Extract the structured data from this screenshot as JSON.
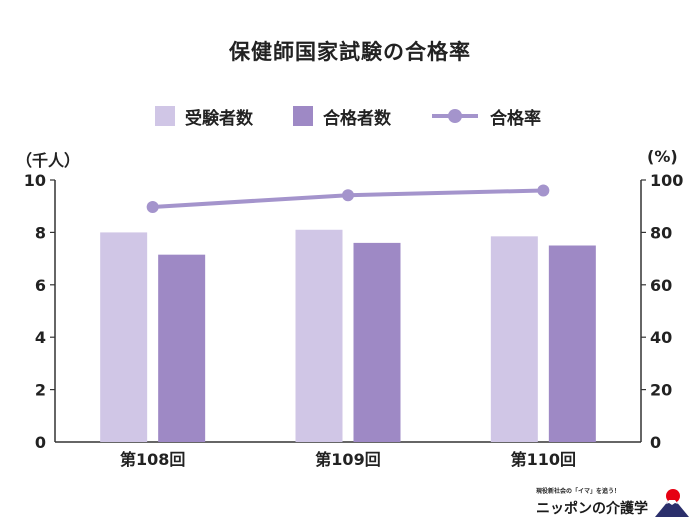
{
  "colors": {
    "applicants": "#d0c6e6",
    "passers": "#9e89c5",
    "rate": "#a494cc",
    "axis": "#333333",
    "text": "#222222"
  },
  "chart_data": {
    "type": "bar",
    "title": "保健師国家試験の合格率",
    "categories": [
      "第108回",
      "第109回",
      "第110回"
    ],
    "series": [
      {
        "name": "受験者数",
        "kind": "bar",
        "axis": "left",
        "values": [
          8.0,
          8.1,
          7.85
        ]
      },
      {
        "name": "合格者数",
        "kind": "bar",
        "axis": "left",
        "values": [
          7.15,
          7.6,
          7.5
        ]
      },
      {
        "name": "合格率",
        "kind": "line",
        "axis": "right",
        "values": [
          89.7,
          94.2,
          96.0
        ]
      }
    ],
    "y_left": {
      "unit": "（千人）",
      "ticks": [
        "0",
        "2",
        "4",
        "6",
        "8",
        "10"
      ],
      "range": [
        0,
        10
      ]
    },
    "y_right": {
      "unit": "(%)",
      "ticks": [
        "0",
        "20",
        "40",
        "60",
        "80",
        "100"
      ],
      "range": [
        0,
        100
      ]
    },
    "grid": false,
    "legend_position": "top"
  },
  "logo": {
    "tagline": "現役新社会の「イマ」を追う！",
    "name": "ニッポンの介護学"
  }
}
